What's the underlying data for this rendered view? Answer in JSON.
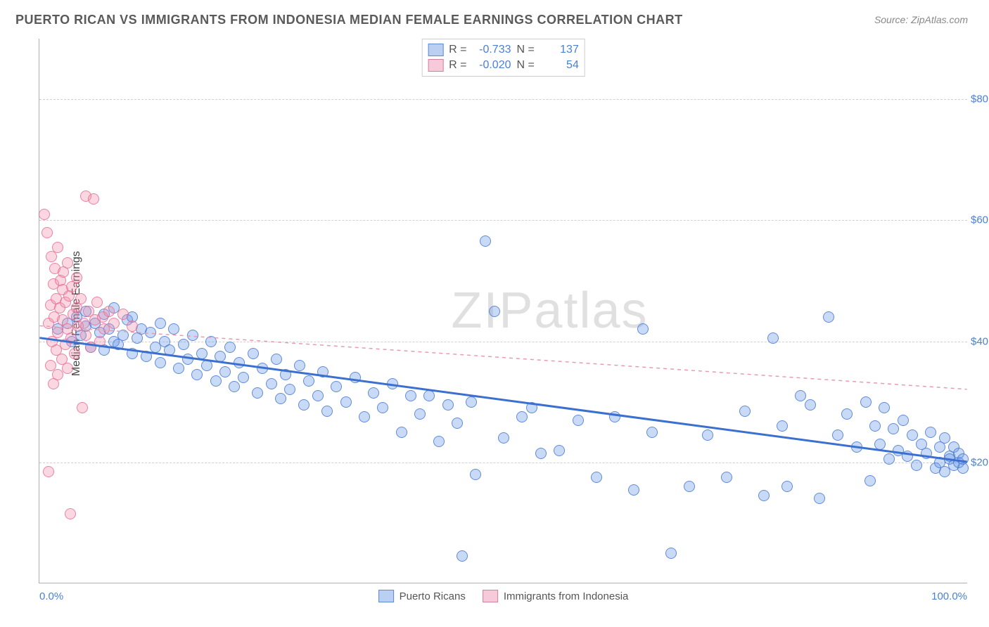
{
  "title": "PUERTO RICAN VS IMMIGRANTS FROM INDONESIA MEDIAN FEMALE EARNINGS CORRELATION CHART",
  "source": "Source: ZipAtlas.com",
  "watermark_main": "ZIP",
  "watermark_sub": "atlas",
  "ylabel": "Median Female Earnings",
  "chart": {
    "type": "scatter",
    "background_color": "#ffffff",
    "grid_color": "#d0d0d0",
    "axis_color": "#b0b0b0",
    "tick_color": "#4a7fd6",
    "xlim": [
      0,
      100
    ],
    "ylim": [
      0,
      90000
    ],
    "xticks": [
      {
        "v": 0,
        "label": "0.0%"
      },
      {
        "v": 100,
        "label": "100.0%"
      }
    ],
    "yticks": [
      {
        "v": 20000,
        "label": "$20,000"
      },
      {
        "v": 40000,
        "label": "$40,000"
      },
      {
        "v": 60000,
        "label": "$60,000"
      },
      {
        "v": 80000,
        "label": "$80,000"
      }
    ],
    "point_radius": 8,
    "series": [
      {
        "name": "Puerto Ricans",
        "color_fill": "rgba(100,150,230,0.35)",
        "color_stroke": "rgba(70,120,210,0.8)",
        "R": "-0.733",
        "N": "137",
        "trend": {
          "x1": 0,
          "y1": 40500,
          "x2": 100,
          "y2": 20000,
          "color": "#3b6fd0",
          "width": 3,
          "dash": "none"
        },
        "points": [
          [
            2,
            42000
          ],
          [
            3,
            43000
          ],
          [
            3.5,
            40000
          ],
          [
            4,
            44000
          ],
          [
            4.5,
            41000
          ],
          [
            5,
            42500
          ],
          [
            5,
            45000
          ],
          [
            5.5,
            39000
          ],
          [
            6,
            43000
          ],
          [
            6.5,
            41500
          ],
          [
            7,
            44500
          ],
          [
            7,
            38500
          ],
          [
            7.5,
            42000
          ],
          [
            8,
            40000
          ],
          [
            8,
            45500
          ],
          [
            8.5,
            39500
          ],
          [
            9,
            41000
          ],
          [
            9.5,
            43500
          ],
          [
            10,
            38000
          ],
          [
            10,
            44000
          ],
          [
            10.5,
            40500
          ],
          [
            11,
            42000
          ],
          [
            11.5,
            37500
          ],
          [
            12,
            41500
          ],
          [
            12.5,
            39000
          ],
          [
            13,
            43000
          ],
          [
            13,
            36500
          ],
          [
            13.5,
            40000
          ],
          [
            14,
            38500
          ],
          [
            14.5,
            42000
          ],
          [
            15,
            35500
          ],
          [
            15.5,
            39500
          ],
          [
            16,
            37000
          ],
          [
            16.5,
            41000
          ],
          [
            17,
            34500
          ],
          [
            17.5,
            38000
          ],
          [
            18,
            36000
          ],
          [
            18.5,
            40000
          ],
          [
            19,
            33500
          ],
          [
            19.5,
            37500
          ],
          [
            20,
            35000
          ],
          [
            20.5,
            39000
          ],
          [
            21,
            32500
          ],
          [
            21.5,
            36500
          ],
          [
            22,
            34000
          ],
          [
            23,
            38000
          ],
          [
            23.5,
            31500
          ],
          [
            24,
            35500
          ],
          [
            25,
            33000
          ],
          [
            25.5,
            37000
          ],
          [
            26,
            30500
          ],
          [
            26.5,
            34500
          ],
          [
            27,
            32000
          ],
          [
            28,
            36000
          ],
          [
            28.5,
            29500
          ],
          [
            29,
            33500
          ],
          [
            30,
            31000
          ],
          [
            30.5,
            35000
          ],
          [
            31,
            28500
          ],
          [
            32,
            32500
          ],
          [
            33,
            30000
          ],
          [
            34,
            34000
          ],
          [
            35,
            27500
          ],
          [
            36,
            31500
          ],
          [
            37,
            29000
          ],
          [
            38,
            33000
          ],
          [
            39,
            25000
          ],
          [
            40,
            31000
          ],
          [
            41,
            28000
          ],
          [
            42,
            31000
          ],
          [
            43,
            23500
          ],
          [
            44,
            29500
          ],
          [
            45,
            26500
          ],
          [
            45.5,
            4500
          ],
          [
            46.5,
            30000
          ],
          [
            47,
            18000
          ],
          [
            48,
            56500
          ],
          [
            49,
            45000
          ],
          [
            50,
            24000
          ],
          [
            52,
            27500
          ],
          [
            53,
            29000
          ],
          [
            54,
            21500
          ],
          [
            56,
            22000
          ],
          [
            58,
            27000
          ],
          [
            60,
            17500
          ],
          [
            62,
            27500
          ],
          [
            64,
            15500
          ],
          [
            65,
            42000
          ],
          [
            66,
            25000
          ],
          [
            68,
            5000
          ],
          [
            70,
            16000
          ],
          [
            72,
            24500
          ],
          [
            74,
            17500
          ],
          [
            76,
            28500
          ],
          [
            78,
            14500
          ],
          [
            79,
            40500
          ],
          [
            80,
            26000
          ],
          [
            80.5,
            16000
          ],
          [
            82,
            31000
          ],
          [
            83,
            29500
          ],
          [
            84,
            14000
          ],
          [
            85,
            44000
          ],
          [
            86,
            24500
          ],
          [
            87,
            28000
          ],
          [
            88,
            22500
          ],
          [
            89,
            30000
          ],
          [
            89.5,
            17000
          ],
          [
            90,
            26000
          ],
          [
            90.5,
            23000
          ],
          [
            91,
            29000
          ],
          [
            91.5,
            20500
          ],
          [
            92,
            25500
          ],
          [
            92.5,
            22000
          ],
          [
            93,
            27000
          ],
          [
            93.5,
            21000
          ],
          [
            94,
            24500
          ],
          [
            94.5,
            19500
          ],
          [
            95,
            23000
          ],
          [
            95.5,
            21500
          ],
          [
            96,
            25000
          ],
          [
            96.5,
            19000
          ],
          [
            97,
            22500
          ],
          [
            97,
            20000
          ],
          [
            97.5,
            24000
          ],
          [
            97.5,
            18500
          ],
          [
            98,
            21000
          ],
          [
            98,
            20500
          ],
          [
            98.5,
            22500
          ],
          [
            98.5,
            19500
          ],
          [
            99,
            20000
          ],
          [
            99,
            21500
          ],
          [
            99.5,
            19000
          ],
          [
            99.5,
            20500
          ]
        ]
      },
      {
        "name": "Immigrants from Indonesia",
        "color_fill": "rgba(240,140,170,0.35)",
        "color_stroke": "rgba(230,110,150,0.8)",
        "R": "-0.020",
        "N": "54",
        "trend": {
          "x1": 0,
          "y1": 42500,
          "x2": 100,
          "y2": 32000,
          "color": "#e89bb0",
          "width": 1.5,
          "dash": "5,5"
        },
        "points": [
          [
            0.5,
            61000
          ],
          [
            0.8,
            58000
          ],
          [
            1,
            43000
          ],
          [
            1,
            18500
          ],
          [
            1.2,
            46000
          ],
          [
            1.2,
            36000
          ],
          [
            1.3,
            54000
          ],
          [
            1.4,
            40000
          ],
          [
            1.5,
            49500
          ],
          [
            1.5,
            33000
          ],
          [
            1.6,
            44000
          ],
          [
            1.7,
            52000
          ],
          [
            1.8,
            38500
          ],
          [
            1.8,
            47000
          ],
          [
            2,
            41500
          ],
          [
            2,
            55500
          ],
          [
            2,
            34500
          ],
          [
            2.2,
            45500
          ],
          [
            2.3,
            50000
          ],
          [
            2.4,
            37000
          ],
          [
            2.5,
            48500
          ],
          [
            2.5,
            43500
          ],
          [
            2.6,
            51500
          ],
          [
            2.8,
            39500
          ],
          [
            2.8,
            46500
          ],
          [
            3,
            42000
          ],
          [
            3,
            53000
          ],
          [
            3,
            35500
          ],
          [
            3.2,
            47500
          ],
          [
            3.3,
            11500
          ],
          [
            3.4,
            40500
          ],
          [
            3.5,
            49000
          ],
          [
            3.6,
            44500
          ],
          [
            3.8,
            38000
          ],
          [
            4,
            45500
          ],
          [
            4,
            50500
          ],
          [
            4.2,
            42500
          ],
          [
            4.5,
            47000
          ],
          [
            4.6,
            29000
          ],
          [
            4.8,
            43000
          ],
          [
            5,
            64000
          ],
          [
            5,
            41000
          ],
          [
            5.3,
            45000
          ],
          [
            5.5,
            39000
          ],
          [
            5.8,
            63500
          ],
          [
            6,
            43500
          ],
          [
            6.2,
            46500
          ],
          [
            6.5,
            40000
          ],
          [
            6.8,
            44000
          ],
          [
            7,
            42000
          ],
          [
            7.5,
            45000
          ],
          [
            8,
            43000
          ],
          [
            9,
            44500
          ],
          [
            10,
            42500
          ]
        ]
      }
    ]
  },
  "stats_labels": {
    "R": "R =",
    "N": "N ="
  },
  "legend_bottom": {
    "series1": "Puerto Ricans",
    "series2": "Immigrants from Indonesia"
  }
}
